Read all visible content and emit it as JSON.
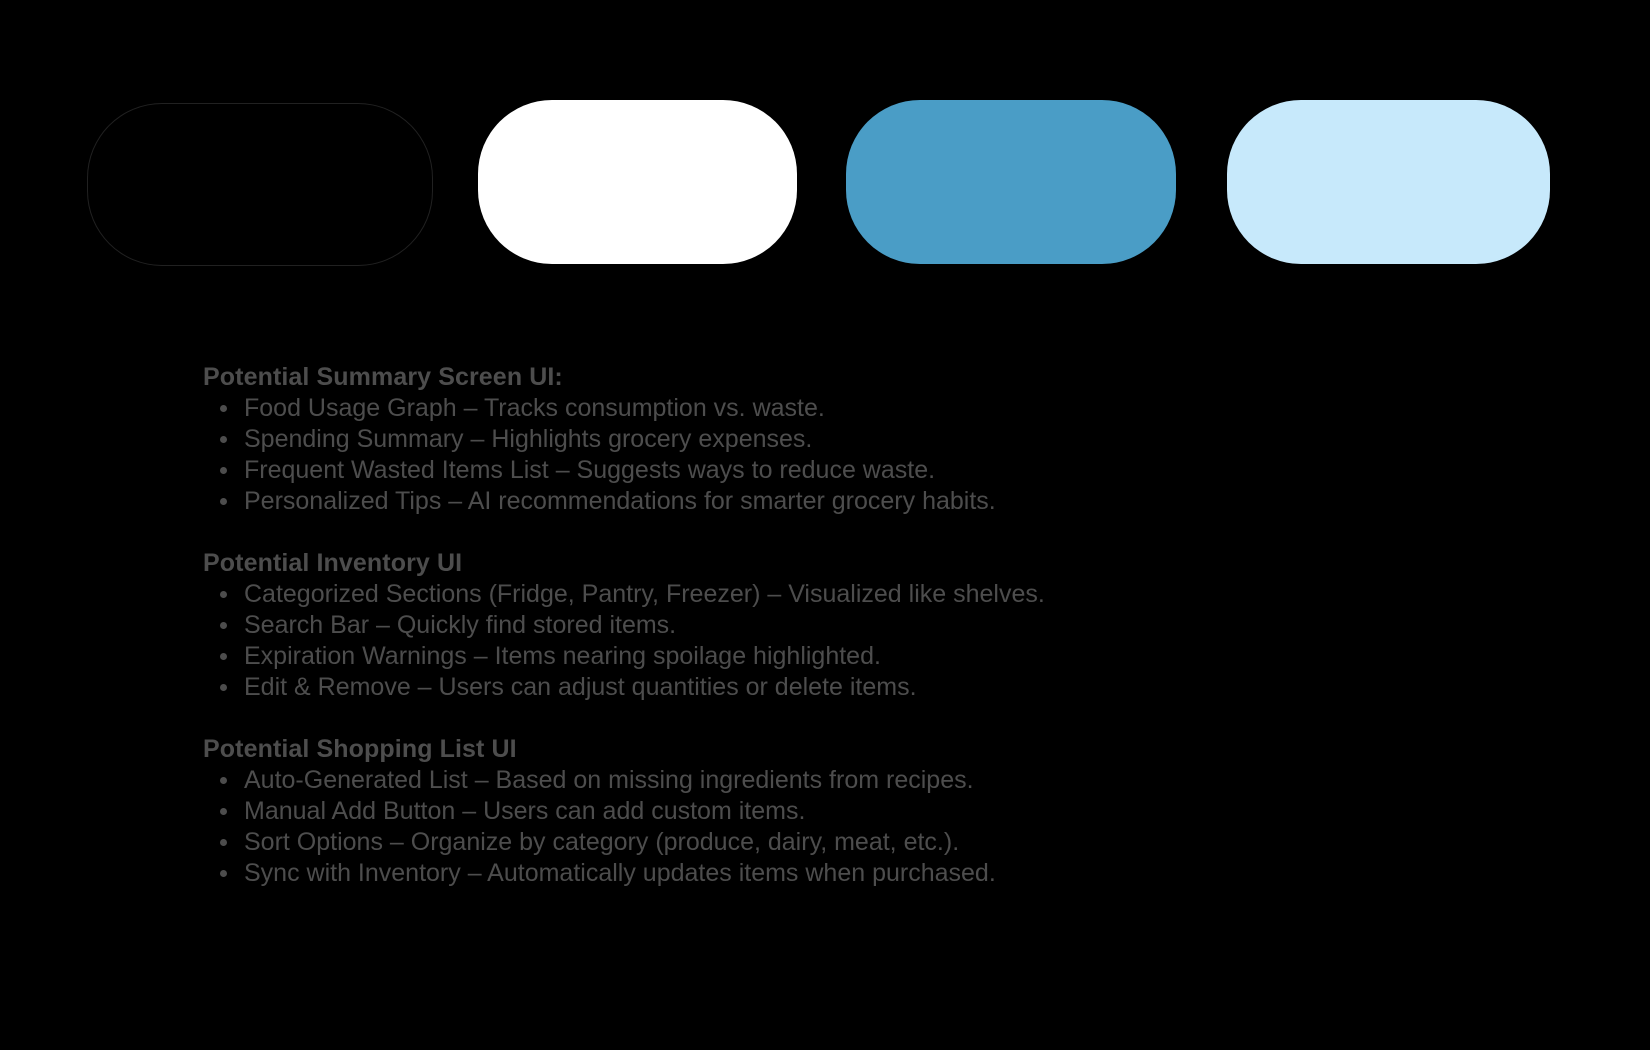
{
  "palette": {
    "swatches": [
      {
        "name": "black",
        "color": "#000000"
      },
      {
        "name": "white",
        "color": "#FFFFFF"
      },
      {
        "name": "medium-blue",
        "color": "#4A9DC6"
      },
      {
        "name": "light-blue",
        "color": "#C7E9FB"
      }
    ]
  },
  "notes": {
    "text_color": "#4D4D4D",
    "sections": [
      {
        "heading": "Potential Summary Screen UI:",
        "items": [
          "Food Usage Graph – Tracks consumption vs. waste.",
          "Spending Summary – Highlights grocery expenses.",
          "Frequent Wasted Items List – Suggests ways to reduce waste.",
          "Personalized Tips – AI recommendations for smarter grocery habits."
        ]
      },
      {
        "heading": "Potential Inventory UI",
        "items": [
          "Categorized Sections (Fridge, Pantry, Freezer) – Visualized like shelves.",
          "Search Bar – Quickly find stored items.",
          "Expiration Warnings – Items nearing spoilage highlighted.",
          "Edit & Remove – Users can adjust quantities or delete items."
        ]
      },
      {
        "heading": "Potential Shopping List UI",
        "items": [
          "Auto-Generated List – Based on missing ingredients from recipes.",
          "Manual Add Button – Users can add custom items.",
          "Sort Options – Organize by category (produce, dairy, meat, etc.).",
          "Sync with Inventory – Automatically updates items when purchased."
        ]
      }
    ]
  }
}
